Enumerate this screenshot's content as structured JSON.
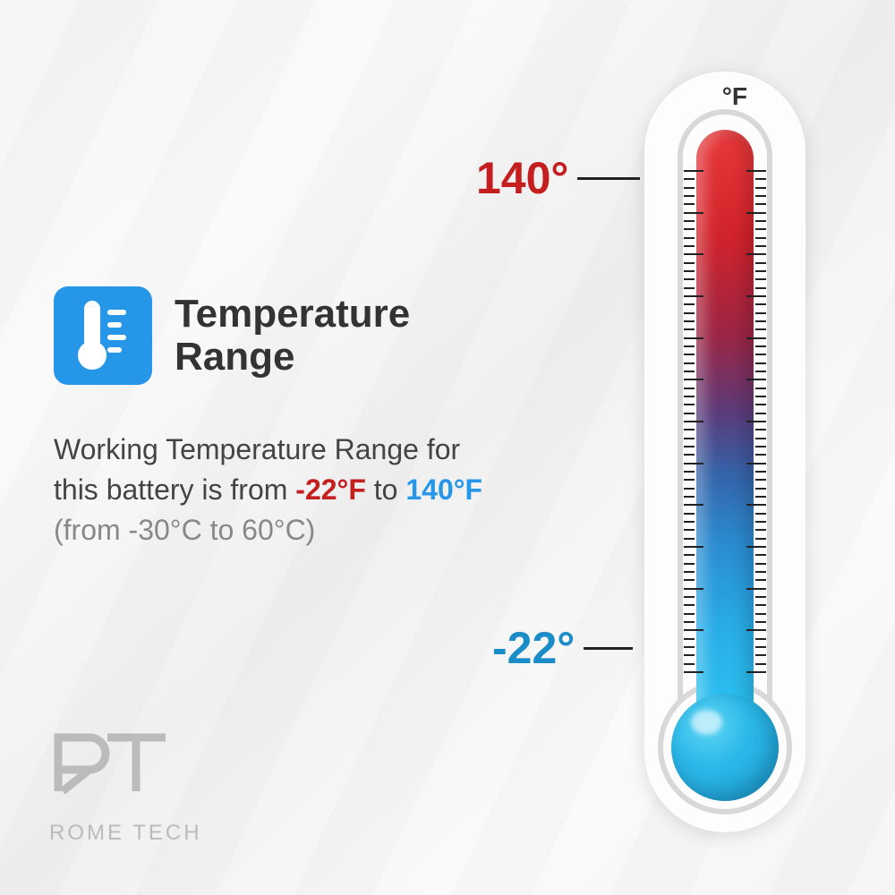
{
  "title": "Temperature\nRange",
  "icon_bg": "#2596e8",
  "description": {
    "prefix": "Working Temperature Range for this battery is from ",
    "cold_value": "-22°F",
    "mid": " to ",
    "hot_value": "140°F",
    "celsius": "(from -30°C to 60°C)"
  },
  "thermometer": {
    "unit": "°F",
    "high_label": "140°",
    "low_label": "-22°",
    "high_color": "#c41e1e",
    "low_color": "#1a8cc8",
    "gradient_top": "#e8383a",
    "gradient_bottom": "#2bc3f0",
    "body_color": "#fdfdfd",
    "outline_color": "#d8d8d8",
    "tick_count_major": 12,
    "tick_minor_per_major": 4
  },
  "logo": {
    "mark": "ЯT",
    "text": "ROME TECH",
    "color": "#bbbbbb"
  },
  "colors": {
    "title_text": "#333333",
    "body_text": "#444444",
    "sub_text": "#888888",
    "background": "#f5f5f5"
  }
}
